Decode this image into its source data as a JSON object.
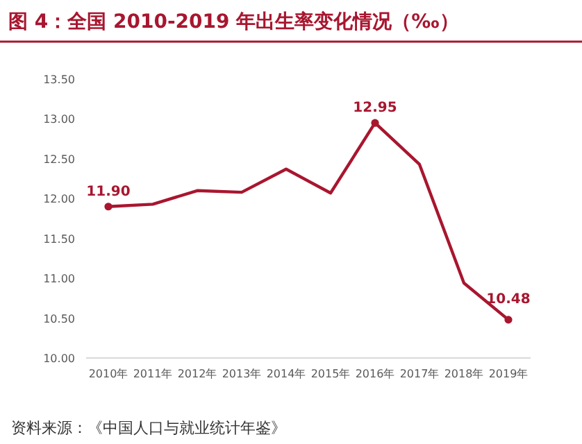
{
  "chart_data": {
    "type": "line",
    "title": "图 4：全国 2010-2019 年出生率变化情况（‰）",
    "categories": [
      "2010年",
      "2011年",
      "2012年",
      "2013年",
      "2014年",
      "2015年",
      "2016年",
      "2017年",
      "2018年",
      "2019年"
    ],
    "series": [
      {
        "color": "#a8162f",
        "values": [
          11.9,
          11.93,
          12.1,
          12.08,
          12.37,
          12.07,
          12.95,
          12.43,
          10.94,
          10.48
        ],
        "value_labels": [
          "11.90",
          null,
          null,
          null,
          null,
          null,
          "12.95",
          null,
          null,
          "10.48"
        ]
      }
    ],
    "ylim": [
      10,
      13.5
    ],
    "yticks": [
      {
        "value": 10,
        "label": "10.00"
      },
      {
        "value": 10.5,
        "label": "10.50"
      },
      {
        "value": 11,
        "label": "11.00"
      },
      {
        "value": 11.5,
        "label": "11.50"
      },
      {
        "value": 12,
        "label": "12.00"
      },
      {
        "value": 12.5,
        "label": "12.50"
      },
      {
        "value": 13,
        "label": "13.00"
      },
      {
        "value": 13.5,
        "label": "13.50"
      }
    ],
    "grid": false,
    "annotations": [
      "资料来源：《中国人口与就业统计年鉴》"
    ]
  }
}
